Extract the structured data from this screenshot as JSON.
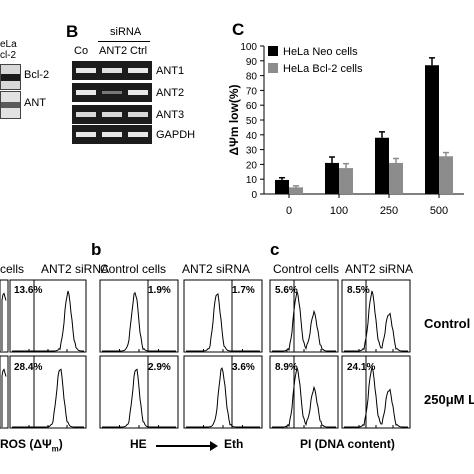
{
  "panelA": {
    "header_lines": [
      "eLa",
      "cl-2"
    ],
    "row_labels": [
      "Bcl-2",
      "ANT"
    ]
  },
  "panelB": {
    "letter": "B",
    "group_label": "siRNA",
    "lane_labels": [
      "Co",
      "ANT2",
      "Ctrl"
    ],
    "row_labels": [
      "ANT1",
      "ANT2",
      "ANT3",
      "GAPDH"
    ]
  },
  "chart_data": {
    "type": "bar",
    "title": "",
    "letter": "C",
    "ylabel": "ΔΨm low(%)",
    "xlabel": "",
    "categories": [
      "0",
      "100",
      "250",
      "500"
    ],
    "ylim": [
      0,
      100
    ],
    "yticks": [
      "0",
      "10",
      "20",
      "30",
      "40",
      "50",
      "60",
      "70",
      "80",
      "90",
      "100"
    ],
    "legend_position": "top-left",
    "series": [
      {
        "name": "HeLa Neo cells",
        "color": "#000000",
        "values": [
          9.5,
          21,
          38,
          87
        ],
        "errors": [
          1.5,
          4,
          4,
          5
        ]
      },
      {
        "name": "HeLa Bcl-2 cells",
        "color": "#8c8c8c",
        "values": [
          4.5,
          17.5,
          21,
          25.5
        ],
        "errors": [
          1,
          3,
          3,
          2.5
        ]
      }
    ]
  },
  "panel_a": {
    "headers": [
      "cells",
      "ANT2 siRNA"
    ],
    "percents": [
      [
        "",
        "13.6%"
      ],
      [
        "",
        "28.4%"
      ]
    ],
    "xaxis": "ROS (ΔΨ",
    "xaxis_sub": "m",
    "xaxis_end": ")"
  },
  "panel_b": {
    "letter": "b",
    "headers": [
      "Control cells",
      "ANT2 siRNA"
    ],
    "percents": [
      [
        "1.9%",
        "1.7%"
      ],
      [
        "2.9%",
        "3.6%"
      ]
    ],
    "xaxis_left": "HE",
    "xaxis_right": "Eth"
  },
  "panel_c": {
    "letter": "c",
    "headers": [
      "Control cells",
      "ANT2 siRNA"
    ],
    "percents": [
      [
        "5.6%",
        "8.5%"
      ],
      [
        "8.9%",
        "24.1%"
      ]
    ],
    "xaxis": "PI (DNA content)"
  },
  "row_labels": [
    "Control",
    "250μM L"
  ]
}
